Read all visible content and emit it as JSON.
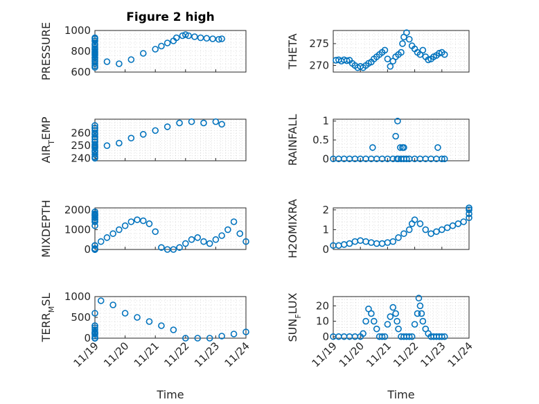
{
  "figure": {
    "title": "Figure 2 high"
  },
  "chart_data": [
    {
      "type": "scatter",
      "ylabel": "PRESSURE",
      "yticks": [
        600,
        800,
        1000
      ],
      "ylim": [
        600,
        1000
      ],
      "x": [
        11.2,
        11.5,
        11.8,
        12.2,
        12.6,
        13.0,
        13.4,
        13.8,
        14.2,
        14.6,
        15.0,
        15.4,
        15.8,
        16.2,
        16.6,
        17.0,
        17.4,
        17.8,
        18.2,
        18.6,
        19.0,
        19.4,
        19.8,
        20.2,
        20.6,
        21.0,
        21.2,
        21.4,
        21.6,
        21.7,
        21.9,
        22.0,
        22.1,
        22.3,
        22.5,
        22.7,
        22.9,
        23.1,
        23.2
      ],
      "y": [
        645,
        660,
        680,
        700,
        715,
        735,
        760,
        770,
        790,
        800,
        815,
        825,
        860,
        870,
        900,
        920,
        930,
        900,
        840,
        780,
        740,
        700,
        680,
        720,
        780,
        820,
        850,
        880,
        900,
        930,
        950,
        960,
        950,
        940,
        930,
        925,
        920,
        915,
        920
      ]
    },
    {
      "type": "scatter",
      "ylabel": "THETA",
      "yticks": [
        270,
        275
      ],
      "ylim": [
        268.5,
        278
      ],
      "x": [
        19.1,
        19.2,
        19.3,
        19.4,
        19.5,
        19.6,
        19.7,
        19.8,
        19.9,
        20.0,
        20.1,
        20.2,
        20.3,
        20.4,
        20.5,
        20.6,
        20.7,
        20.8,
        20.9,
        21.0,
        21.1,
        21.2,
        21.3,
        21.4,
        21.5,
        21.55,
        21.6,
        21.7,
        21.8,
        21.9,
        22.0,
        22.1,
        22.2,
        22.3,
        22.4,
        22.5,
        22.6,
        22.7,
        22.8,
        22.9,
        23.0,
        23.1
      ],
      "y": [
        271.2,
        271.3,
        271.0,
        271.3,
        271.1,
        271.2,
        270.5,
        270.0,
        269.5,
        269.8,
        269.5,
        270.0,
        270.5,
        270.8,
        271.5,
        272.0,
        272.5,
        273.0,
        273.5,
        271.5,
        269.8,
        271.0,
        272.0,
        272.5,
        273.0,
        275.0,
        276.5,
        277.5,
        276.0,
        274.5,
        273.8,
        273.0,
        272.5,
        273.5,
        272.0,
        271.3,
        271.5,
        272.0,
        272.3,
        272.8,
        273.0,
        272.5
      ]
    },
    {
      "type": "scatter",
      "ylabel": "AIR_TEMP",
      "yticks": [
        240,
        250,
        260
      ],
      "ylim": [
        238,
        271
      ],
      "x": [
        11.2,
        11.5,
        11.8,
        12.2,
        12.6,
        13.0,
        13.4,
        13.8,
        14.2,
        14.6,
        15.0,
        15.4,
        15.8,
        16.2,
        16.6,
        17.0,
        17.4,
        17.8,
        18.2,
        18.6,
        19.0,
        19.4,
        19.8,
        20.2,
        20.6,
        21.0,
        21.4,
        21.8,
        22.2,
        22.6,
        23.0,
        23.2
      ],
      "y": [
        240,
        241,
        243,
        245,
        246,
        248,
        249,
        251,
        253,
        255,
        257,
        259,
        262,
        264,
        266,
        264,
        260,
        257,
        253,
        250,
        249,
        250,
        252,
        256,
        259,
        262,
        265,
        268,
        269,
        268,
        269,
        267
      ]
    },
    {
      "type": "scatter",
      "ylabel": "RAINFALL",
      "yticks": [
        0,
        0.5,
        1
      ],
      "ylim": [
        -0.05,
        1.05
      ],
      "x": [
        19.0,
        19.2,
        19.4,
        19.6,
        19.8,
        20.0,
        20.2,
        20.4,
        20.6,
        20.8,
        21.0,
        21.2,
        21.35,
        21.4,
        21.5,
        21.6,
        21.7,
        21.8,
        22.0,
        22.2,
        22.4,
        22.6,
        22.8,
        23.0,
        23.1,
        20.45,
        21.3,
        21.37,
        21.47,
        21.55,
        21.6,
        22.85
      ],
      "y": [
        0,
        0,
        0,
        0,
        0,
        0,
        0,
        0,
        0,
        0,
        0,
        0,
        0,
        0,
        0,
        0,
        0,
        0,
        0,
        0,
        0,
        0,
        0,
        0,
        0,
        0.3,
        0.6,
        1.0,
        0.3,
        0.3,
        0.3,
        0.3
      ]
    },
    {
      "type": "scatter",
      "ylabel": "MIXDEPTH",
      "yticks": [
        0,
        1000,
        2000
      ],
      "ylim": [
        0,
        2100
      ],
      "x": [
        11.2,
        11.5,
        11.8,
        12.2,
        12.6,
        13.0,
        13.4,
        13.8,
        14.2,
        14.6,
        15.0,
        15.4,
        15.8,
        16.2,
        16.6,
        17.0,
        17.4,
        17.8,
        18.0,
        18.2,
        18.4,
        18.6,
        18.8,
        19.0,
        19.2,
        19.4,
        19.6,
        19.8,
        20.0,
        20.2,
        20.4,
        20.6,
        20.8,
        21.0,
        21.2,
        21.4,
        21.6,
        21.8,
        22.0,
        22.2,
        22.4,
        22.6,
        22.8,
        23.0,
        23.2,
        23.4,
        23.6,
        23.8,
        24.0
      ],
      "y": [
        1400,
        1500,
        1600,
        1700,
        1750,
        1800,
        1900,
        1800,
        1700,
        1600,
        1500,
        1400,
        1200,
        200,
        0,
        0,
        0,
        0,
        0,
        0,
        0,
        0,
        50,
        200,
        400,
        600,
        800,
        1000,
        1200,
        1400,
        1500,
        1450,
        1300,
        900,
        100,
        0,
        0,
        100,
        300,
        500,
        600,
        400,
        300,
        500,
        700,
        1000,
        1400,
        800,
        400
      ]
    },
    {
      "type": "scatter",
      "ylabel": "H2OMIXRA",
      "yticks": [
        0,
        1,
        2
      ],
      "ylim": [
        0,
        2.1
      ],
      "x": [
        19.0,
        19.2,
        19.4,
        19.6,
        19.8,
        20.0,
        20.2,
        20.4,
        20.6,
        20.8,
        21.0,
        21.2,
        21.4,
        21.6,
        21.8,
        21.9,
        22.0,
        22.2,
        22.4,
        22.6,
        22.8,
        23.0,
        23.2,
        23.4,
        23.6,
        23.8,
        24.0,
        24.2,
        24.4,
        24.6,
        24.8
      ],
      "y": [
        0.2,
        0.2,
        0.25,
        0.3,
        0.4,
        0.45,
        0.4,
        0.35,
        0.3,
        0.3,
        0.35,
        0.4,
        0.6,
        0.8,
        1.0,
        1.3,
        1.5,
        1.3,
        1.0,
        0.8,
        0.9,
        1.0,
        1.1,
        1.2,
        1.3,
        1.4,
        1.6,
        1.8,
        2.0,
        2.1,
        2.1
      ]
    },
    {
      "type": "scatter",
      "ylabel": "TERR_MSL",
      "yticks": [
        0,
        500,
        1000
      ],
      "ylim": [
        0,
        1000
      ],
      "x": [
        11.2,
        11.6,
        12.0,
        12.4,
        12.8,
        13.2,
        13.6,
        14.0,
        14.4,
        14.8,
        15.2,
        15.6,
        16.0,
        16.4,
        16.8,
        17.2,
        17.6,
        18.0,
        18.4,
        18.8,
        19.2,
        19.6,
        20.0,
        20.4,
        20.8,
        21.2,
        21.6,
        22.0,
        22.4,
        22.8,
        23.2,
        23.6,
        24.0
      ],
      "y": [
        0,
        0,
        0,
        0,
        0,
        0,
        0,
        0,
        100,
        150,
        120,
        130,
        200,
        300,
        250,
        100,
        0,
        50,
        300,
        600,
        900,
        800,
        600,
        500,
        400,
        300,
        200,
        0,
        0,
        0,
        50,
        100,
        150
      ]
    },
    {
      "type": "scatter",
      "ylabel": "SUN_FLUX",
      "yticks": [
        0,
        10,
        20
      ],
      "ylim": [
        -1,
        26
      ],
      "x": [
        19.0,
        19.2,
        19.4,
        19.6,
        19.8,
        20.0,
        20.1,
        20.2,
        20.3,
        20.4,
        20.5,
        20.6,
        20.7,
        20.8,
        20.9,
        21.0,
        21.1,
        21.2,
        21.3,
        21.35,
        21.4,
        21.5,
        21.6,
        21.7,
        21.8,
        21.9,
        22.0,
        22.1,
        22.15,
        22.2,
        22.25,
        22.3,
        22.4,
        22.5,
        22.6,
        22.7,
        22.8,
        22.9,
        23.0,
        23.1
      ],
      "y": [
        0,
        0,
        0,
        0,
        0,
        0,
        2,
        10,
        18,
        15,
        10,
        5,
        0,
        0,
        0,
        8,
        13,
        19,
        15,
        10,
        5,
        0,
        0,
        0,
        0,
        0,
        8,
        15,
        25,
        20,
        15,
        10,
        5,
        2,
        0,
        0,
        0,
        0,
        0,
        0
      ]
    }
  ],
  "xaxis": {
    "ticks": [
      "11/19",
      "11/20",
      "11/21",
      "11/22",
      "11/23",
      "11/24"
    ],
    "label": "Time"
  }
}
